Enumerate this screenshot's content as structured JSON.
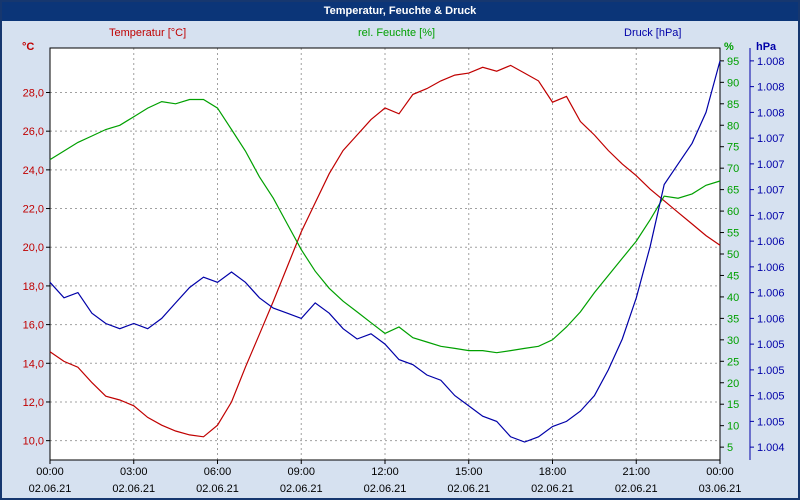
{
  "window": {
    "title": "Temperatur, Feuchte & Druck"
  },
  "legend": {
    "temp": "Temperatur  [°C]",
    "hum": "rel. Feuchte [%]",
    "pres": "Druck [hPa]"
  },
  "axis_units": {
    "temp": "°C",
    "hum": "%",
    "pres": "hPa"
  },
  "colors": {
    "temp": "#C00000",
    "hum": "#00A000",
    "pres": "#0000A8",
    "window_bg": "#D6E1F0",
    "titlebar": "#0B3578",
    "frame": "#16376F",
    "plot_bg": "#FFFFFF",
    "plot_border": "#000000",
    "grid": "#A0A0A0"
  },
  "chart_data": {
    "type": "line",
    "title": "Temperatur, Feuchte & Druck",
    "x_hours": [
      0,
      0.5,
      1,
      1.5,
      2,
      2.5,
      3,
      3.5,
      4,
      4.5,
      5,
      5.5,
      6,
      6.5,
      7,
      7.5,
      8,
      8.5,
      9,
      9.5,
      10,
      10.5,
      11,
      11.5,
      12,
      12.5,
      13,
      13.5,
      14,
      14.5,
      15,
      15.5,
      16,
      16.5,
      17,
      17.5,
      18,
      18.5,
      19,
      19.5,
      20,
      20.5,
      21,
      21.5,
      22,
      22.5,
      23,
      23.5,
      24
    ],
    "series": [
      {
        "name": "Temperatur [°C]",
        "axis": "temp",
        "color_key": "temp",
        "data_name": "temperature-curve",
        "values": [
          14.6,
          14.1,
          13.8,
          13.0,
          12.3,
          12.1,
          11.8,
          11.2,
          10.8,
          10.5,
          10.3,
          10.2,
          10.8,
          12.0,
          13.8,
          15.5,
          17.2,
          19.0,
          20.8,
          22.3,
          23.8,
          25.0,
          25.8,
          26.6,
          27.2,
          26.9,
          27.9,
          28.2,
          28.6,
          28.9,
          29.0,
          29.3,
          29.1,
          29.4,
          29.0,
          28.6,
          27.5,
          27.8,
          26.5,
          25.8,
          25.0,
          24.3,
          23.7,
          23.0,
          22.4,
          21.8,
          21.2,
          20.6,
          20.1
        ]
      },
      {
        "name": "rel. Feuchte [%]",
        "axis": "hum",
        "color_key": "hum",
        "data_name": "humidity-curve",
        "values": [
          72,
          74,
          76,
          77.5,
          79,
          80,
          82,
          84,
          85.5,
          85,
          86,
          86,
          84,
          79,
          74,
          68,
          63,
          57,
          51,
          46,
          42,
          39,
          36.5,
          34,
          31.5,
          33,
          30.5,
          29.5,
          28.5,
          28,
          27.5,
          27.5,
          27,
          27.5,
          28,
          28.5,
          30,
          33,
          36.5,
          41,
          45,
          49,
          53,
          58,
          63.5,
          63,
          64,
          66,
          67
        ]
      },
      {
        "name": "Druck [hPa]",
        "axis": "pres",
        "color_key": "pres",
        "data_name": "pressure-curve",
        "values": [
          1005.85,
          1005.7,
          1005.75,
          1005.55,
          1005.45,
          1005.4,
          1005.45,
          1005.4,
          1005.5,
          1005.65,
          1005.8,
          1005.9,
          1005.85,
          1005.95,
          1005.85,
          1005.7,
          1005.6,
          1005.55,
          1005.5,
          1005.65,
          1005.55,
          1005.4,
          1005.3,
          1005.35,
          1005.25,
          1005.1,
          1005.05,
          1004.95,
          1004.9,
          1004.75,
          1004.65,
          1004.55,
          1004.5,
          1004.35,
          1004.3,
          1004.35,
          1004.45,
          1004.5,
          1004.6,
          1004.75,
          1005.0,
          1005.3,
          1005.7,
          1006.2,
          1006.8,
          1007.0,
          1007.2,
          1007.5,
          1008.0
        ]
      }
    ],
    "temp_axis": {
      "min": 9.0,
      "max": 30.3,
      "tick_values": [
        10,
        12,
        14,
        16,
        18,
        20,
        22,
        24,
        26,
        28
      ],
      "tick_labels": [
        "10,0",
        "12,0",
        "14,0",
        "16,0",
        "18,0",
        "20,0",
        "22,0",
        "24,0",
        "26,0",
        "28,0"
      ]
    },
    "hum_axis": {
      "min": 2,
      "max": 98,
      "tick_values": [
        5,
        10,
        15,
        20,
        25,
        30,
        35,
        40,
        45,
        50,
        55,
        60,
        65,
        70,
        75,
        80,
        85,
        90,
        95
      ],
      "tick_labels": [
        "5",
        "10",
        "15",
        "20",
        "25",
        "30",
        "35",
        "40",
        "45",
        "50",
        "55",
        "60",
        "65",
        "70",
        "75",
        "80",
        "85",
        "90",
        "95"
      ]
    },
    "pres_axis": {
      "min": 1004.125,
      "max": 1008.125,
      "tick_values": [
        1004.25,
        1004.5,
        1004.75,
        1005.0,
        1005.25,
        1005.5,
        1005.75,
        1006.0,
        1006.25,
        1006.5,
        1006.75,
        1007.0,
        1007.25,
        1007.5,
        1007.75,
        1008.0
      ],
      "tick_labels": [
        "1.004",
        "1.005",
        "1.005",
        "1.005",
        "1.005",
        "1.006",
        "1.006",
        "1.006",
        "1.006",
        "1.007",
        "1.007",
        "1.007",
        "1.007",
        "1.008",
        "1.008",
        "1.008"
      ]
    },
    "x_axis": {
      "min": 0,
      "max": 24,
      "tick_hours": [
        0,
        3,
        6,
        9,
        12,
        15,
        18,
        21,
        24
      ],
      "tick_labels": [
        "00:00",
        "03:00",
        "06:00",
        "09:00",
        "12:00",
        "15:00",
        "18:00",
        "21:00",
        "00:00"
      ],
      "date_labels": [
        "02.06.21",
        "02.06.21",
        "02.06.21",
        "02.06.21",
        "02.06.21",
        "02.06.21",
        "02.06.21",
        "02.06.21",
        "03.06.21"
      ]
    },
    "grid": "dashed",
    "legend_position": "top"
  }
}
